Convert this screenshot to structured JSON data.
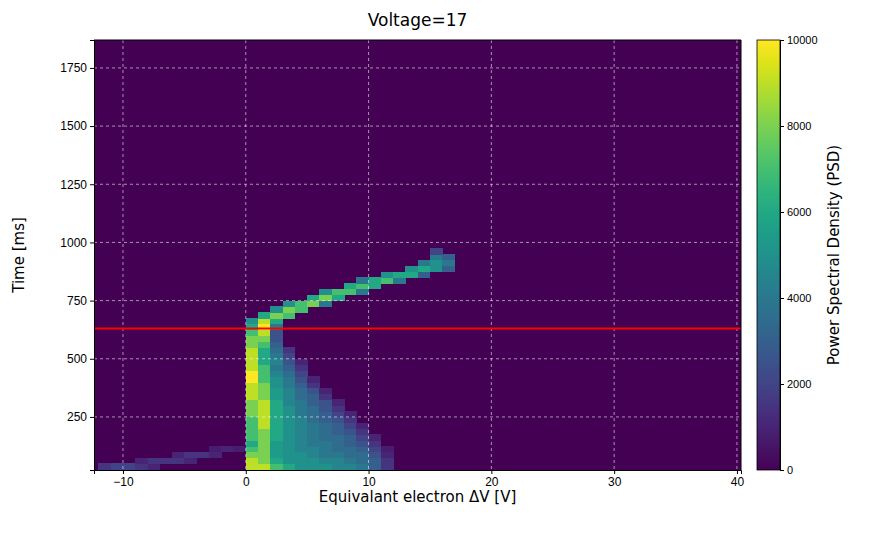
{
  "chart_data": {
    "type": "heatmap",
    "title": "Voltage=17",
    "x_label": "Equivalant electron ΔV [V]",
    "y_label": "Time [ms]",
    "xlim": [
      -12.36,
      40.33
    ],
    "ylim": [
      22,
      1870
    ],
    "xticks": [
      {
        "value": -10,
        "label": "−10"
      },
      0,
      10,
      20,
      30,
      40
    ],
    "yticks": [
      250,
      500,
      750,
      1000,
      1250,
      1500,
      1750
    ],
    "grid": true,
    "color": "viridis",
    "cell_width": 1,
    "cell_height": 25,
    "colorbar": {
      "label": "Power Spectral Density (PSD)",
      "range": [
        0,
        10000
      ],
      "ticks": [
        0,
        2000,
        4000,
        6000,
        8000,
        10000
      ]
    },
    "reference_line": {
      "y": 630,
      "color": "#ff0000"
    },
    "cells": [
      [
        -12,
        25,
        1500
      ],
      [
        -11,
        25,
        2000
      ],
      [
        -10,
        25,
        2000
      ],
      [
        -9,
        25,
        1500
      ],
      [
        -8,
        25,
        1000
      ],
      [
        -9,
        50,
        1000
      ],
      [
        -8,
        50,
        1500
      ],
      [
        -7,
        50,
        1500
      ],
      [
        -6,
        50,
        1500
      ],
      [
        -5,
        50,
        1000
      ],
      [
        -6,
        75,
        1000
      ],
      [
        -5,
        75,
        1500
      ],
      [
        -4,
        75,
        1500
      ],
      [
        -3,
        75,
        1000
      ],
      [
        -3,
        100,
        800
      ],
      [
        -2,
        100,
        1000
      ],
      [
        -1,
        100,
        800
      ],
      [
        0,
        25,
        9000
      ],
      [
        1,
        25,
        9000
      ],
      [
        2,
        25,
        7000
      ],
      [
        3,
        25,
        6000
      ],
      [
        4,
        25,
        5000
      ],
      [
        5,
        25,
        5000
      ],
      [
        6,
        25,
        5000
      ],
      [
        7,
        25,
        4500
      ],
      [
        8,
        25,
        4500
      ],
      [
        9,
        25,
        4000
      ],
      [
        10,
        25,
        3000
      ],
      [
        11,
        25,
        1500
      ],
      [
        0,
        50,
        9000
      ],
      [
        1,
        50,
        8000
      ],
      [
        2,
        50,
        6000
      ],
      [
        3,
        50,
        5000
      ],
      [
        4,
        50,
        5000
      ],
      [
        5,
        50,
        5000
      ],
      [
        6,
        50,
        4500
      ],
      [
        7,
        50,
        4500
      ],
      [
        8,
        50,
        4000
      ],
      [
        9,
        50,
        3500
      ],
      [
        10,
        50,
        3000
      ],
      [
        11,
        50,
        1500
      ],
      [
        0,
        75,
        8000
      ],
      [
        1,
        75,
        8000
      ],
      [
        2,
        75,
        5500
      ],
      [
        3,
        75,
        5000
      ],
      [
        4,
        75,
        5000
      ],
      [
        5,
        75,
        4500
      ],
      [
        6,
        75,
        4000
      ],
      [
        7,
        75,
        4000
      ],
      [
        8,
        75,
        3500
      ],
      [
        9,
        75,
        3500
      ],
      [
        10,
        75,
        2500
      ],
      [
        11,
        75,
        1000
      ],
      [
        0,
        100,
        7000
      ],
      [
        1,
        100,
        8000
      ],
      [
        2,
        100,
        5500
      ],
      [
        3,
        100,
        5000
      ],
      [
        4,
        100,
        4500
      ],
      [
        5,
        100,
        4500
      ],
      [
        6,
        100,
        4000
      ],
      [
        7,
        100,
        3500
      ],
      [
        8,
        100,
        3500
      ],
      [
        9,
        100,
        3000
      ],
      [
        10,
        100,
        2000
      ],
      [
        11,
        100,
        800
      ],
      [
        0,
        125,
        6000
      ],
      [
        1,
        125,
        8000
      ],
      [
        2,
        125,
        5500
      ],
      [
        3,
        125,
        5000
      ],
      [
        4,
        125,
        4500
      ],
      [
        5,
        125,
        4000
      ],
      [
        6,
        125,
        4000
      ],
      [
        7,
        125,
        3500
      ],
      [
        8,
        125,
        3000
      ],
      [
        9,
        125,
        2500
      ],
      [
        10,
        125,
        1500
      ],
      [
        0,
        150,
        7000
      ],
      [
        1,
        150,
        8000
      ],
      [
        2,
        150,
        6000
      ],
      [
        3,
        150,
        5000
      ],
      [
        4,
        150,
        4500
      ],
      [
        5,
        150,
        4000
      ],
      [
        6,
        150,
        3500
      ],
      [
        7,
        150,
        3500
      ],
      [
        8,
        150,
        3000
      ],
      [
        9,
        150,
        2000
      ],
      [
        10,
        150,
        1000
      ],
      [
        0,
        175,
        7000
      ],
      [
        1,
        175,
        8000
      ],
      [
        2,
        175,
        6000
      ],
      [
        3,
        175,
        5000
      ],
      [
        4,
        175,
        4500
      ],
      [
        5,
        175,
        4000
      ],
      [
        6,
        175,
        3500
      ],
      [
        7,
        175,
        3000
      ],
      [
        8,
        175,
        2500
      ],
      [
        9,
        175,
        1500
      ],
      [
        0,
        200,
        7000
      ],
      [
        1,
        200,
        9000
      ],
      [
        2,
        200,
        6000
      ],
      [
        3,
        200,
        5000
      ],
      [
        4,
        200,
        4500
      ],
      [
        5,
        200,
        4000
      ],
      [
        6,
        200,
        3500
      ],
      [
        7,
        200,
        3000
      ],
      [
        8,
        200,
        2000
      ],
      [
        9,
        200,
        1000
      ],
      [
        0,
        225,
        7000
      ],
      [
        1,
        225,
        9000
      ],
      [
        2,
        225,
        6000
      ],
      [
        3,
        225,
        5000
      ],
      [
        4,
        225,
        4500
      ],
      [
        5,
        225,
        3500
      ],
      [
        6,
        225,
        3000
      ],
      [
        7,
        225,
        2500
      ],
      [
        8,
        225,
        1500
      ],
      [
        0,
        250,
        8000
      ],
      [
        1,
        250,
        9000
      ],
      [
        2,
        250,
        6000
      ],
      [
        3,
        250,
        5000
      ],
      [
        4,
        250,
        4000
      ],
      [
        5,
        250,
        3500
      ],
      [
        6,
        250,
        3000
      ],
      [
        7,
        250,
        2000
      ],
      [
        8,
        250,
        1000
      ],
      [
        0,
        275,
        8000
      ],
      [
        1,
        275,
        9000
      ],
      [
        2,
        275,
        6000
      ],
      [
        3,
        275,
        5000
      ],
      [
        4,
        275,
        4000
      ],
      [
        5,
        275,
        3500
      ],
      [
        6,
        275,
        2500
      ],
      [
        7,
        275,
        1500
      ],
      [
        0,
        300,
        8000
      ],
      [
        1,
        300,
        9000
      ],
      [
        2,
        300,
        6000
      ],
      [
        3,
        300,
        4500
      ],
      [
        4,
        300,
        4000
      ],
      [
        5,
        300,
        3000
      ],
      [
        6,
        300,
        2500
      ],
      [
        7,
        300,
        1000
      ],
      [
        0,
        325,
        9000
      ],
      [
        1,
        325,
        8000
      ],
      [
        2,
        325,
        5500
      ],
      [
        3,
        325,
        4500
      ],
      [
        4,
        325,
        3500
      ],
      [
        5,
        325,
        3000
      ],
      [
        6,
        325,
        1500
      ],
      [
        0,
        350,
        9000
      ],
      [
        1,
        350,
        8000
      ],
      [
        2,
        350,
        5500
      ],
      [
        3,
        350,
        4500
      ],
      [
        4,
        350,
        3500
      ],
      [
        5,
        350,
        2500
      ],
      [
        6,
        350,
        1000
      ],
      [
        0,
        375,
        9000
      ],
      [
        1,
        375,
        8000
      ],
      [
        2,
        375,
        5000
      ],
      [
        3,
        375,
        4000
      ],
      [
        4,
        375,
        3000
      ],
      [
        5,
        375,
        1500
      ],
      [
        0,
        400,
        10000
      ],
      [
        1,
        400,
        7000
      ],
      [
        2,
        400,
        5000
      ],
      [
        3,
        400,
        4000
      ],
      [
        4,
        400,
        2500
      ],
      [
        5,
        400,
        1000
      ],
      [
        0,
        425,
        10000
      ],
      [
        1,
        425,
        7000
      ],
      [
        2,
        425,
        4500
      ],
      [
        3,
        425,
        3500
      ],
      [
        4,
        425,
        2000
      ],
      [
        0,
        450,
        9000
      ],
      [
        1,
        450,
        7000
      ],
      [
        2,
        450,
        4000
      ],
      [
        3,
        450,
        3000
      ],
      [
        4,
        450,
        1500
      ],
      [
        0,
        475,
        9000
      ],
      [
        1,
        475,
        6000
      ],
      [
        2,
        475,
        4500
      ],
      [
        3,
        475,
        2500
      ],
      [
        4,
        475,
        1000
      ],
      [
        0,
        500,
        9000
      ],
      [
        1,
        500,
        6000
      ],
      [
        2,
        500,
        4000
      ],
      [
        3,
        500,
        2000
      ],
      [
        0,
        525,
        9000
      ],
      [
        1,
        525,
        6000
      ],
      [
        2,
        525,
        3500
      ],
      [
        3,
        525,
        1500
      ],
      [
        0,
        550,
        8000
      ],
      [
        1,
        550,
        7000
      ],
      [
        2,
        550,
        3000
      ],
      [
        0,
        575,
        8000
      ],
      [
        1,
        575,
        8000
      ],
      [
        2,
        575,
        2500
      ],
      [
        0,
        600,
        7000
      ],
      [
        1,
        600,
        9000
      ],
      [
        2,
        600,
        2500
      ],
      [
        0,
        625,
        6000
      ],
      [
        1,
        625,
        10000
      ],
      [
        2,
        625,
        4000
      ],
      [
        0,
        650,
        5000
      ],
      [
        1,
        650,
        9000
      ],
      [
        2,
        650,
        6000
      ],
      [
        1,
        675,
        6000
      ],
      [
        2,
        675,
        8000
      ],
      [
        3,
        675,
        7000
      ],
      [
        2,
        700,
        5000
      ],
      [
        3,
        700,
        8000
      ],
      [
        4,
        700,
        7000
      ],
      [
        3,
        725,
        5000
      ],
      [
        4,
        725,
        7000
      ],
      [
        5,
        725,
        8000
      ],
      [
        6,
        725,
        4000
      ],
      [
        5,
        750,
        6000
      ],
      [
        6,
        750,
        8000
      ],
      [
        7,
        750,
        6000
      ],
      [
        6,
        775,
        5000
      ],
      [
        7,
        775,
        7000
      ],
      [
        8,
        775,
        7000
      ],
      [
        9,
        775,
        4000
      ],
      [
        8,
        800,
        6000
      ],
      [
        9,
        800,
        7000
      ],
      [
        10,
        800,
        6000
      ],
      [
        9,
        825,
        4000
      ],
      [
        10,
        825,
        6000
      ],
      [
        11,
        825,
        7000
      ],
      [
        12,
        825,
        4000
      ],
      [
        11,
        850,
        5000
      ],
      [
        12,
        850,
        6000
      ],
      [
        13,
        850,
        6000
      ],
      [
        14,
        850,
        3000
      ],
      [
        13,
        875,
        5000
      ],
      [
        14,
        875,
        6000
      ],
      [
        15,
        875,
        5000
      ],
      [
        16,
        875,
        3000
      ],
      [
        14,
        900,
        4000
      ],
      [
        15,
        900,
        5000
      ],
      [
        16,
        900,
        4000
      ],
      [
        15,
        925,
        4000
      ],
      [
        16,
        925,
        3000
      ],
      [
        15,
        950,
        2000
      ]
    ]
  }
}
